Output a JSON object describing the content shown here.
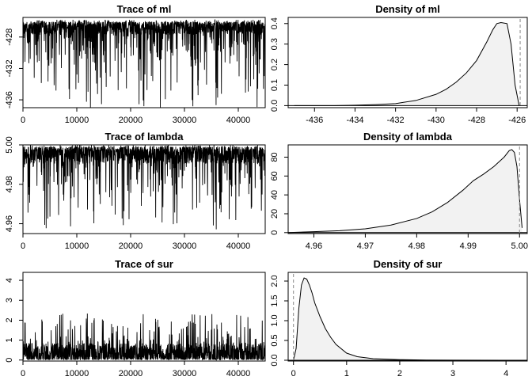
{
  "chart_data": [
    {
      "type": "line",
      "title": "Trace of ml",
      "xlim": [
        0,
        45000
      ],
      "ylim": [
        -437,
        -425.5
      ],
      "x_ticks": [
        0,
        10000,
        20000,
        30000,
        40000
      ],
      "y_ticks": [
        -436,
        -432,
        -428
      ],
      "trace": {
        "center": -427.0,
        "upper": -425.8,
        "lower": -437.0,
        "skew": "negative",
        "n_iter": 45000
      }
    },
    {
      "type": "area",
      "title": "Density of ml",
      "xlim": [
        -437.3,
        -425.5
      ],
      "ylim": [
        -0.01,
        0.43
      ],
      "x_ticks": [
        -436,
        -434,
        -432,
        -430,
        -428,
        -426
      ],
      "y_ticks": [
        0.0,
        0.1,
        0.2,
        0.3,
        0.4
      ],
      "x": [
        -437,
        -436,
        -435,
        -434,
        -433,
        -432,
        -431,
        -430,
        -429.5,
        -429,
        -428.5,
        -428,
        -427.5,
        -427.2,
        -427,
        -426.8,
        -426.5,
        -426.3,
        -426.1,
        -425.9
      ],
      "y": [
        0.0,
        0.0,
        0.0,
        0.002,
        0.005,
        0.01,
        0.025,
        0.055,
        0.08,
        0.115,
        0.16,
        0.22,
        0.31,
        0.37,
        0.4,
        0.405,
        0.4,
        0.3,
        0.1,
        0.0
      ],
      "marker_x": -425.85
    },
    {
      "type": "line",
      "title": "Trace of lambda",
      "xlim": [
        0,
        45000
      ],
      "ylim": [
        4.955,
        5.0
      ],
      "x_ticks": [
        0,
        10000,
        20000,
        30000,
        40000
      ],
      "y_ticks": [
        4.96,
        4.98,
        5.0
      ],
      "trace": {
        "center": 4.994,
        "upper": 5.0,
        "lower": 4.957,
        "skew": "negative",
        "n_iter": 45000
      }
    },
    {
      "type": "area",
      "title": "Density of lambda",
      "xlim": [
        4.955,
        5.0015
      ],
      "ylim": [
        -1,
        93
      ],
      "x_ticks": [
        4.96,
        4.97,
        4.98,
        4.99,
        5.0
      ],
      "tick_labels_x": [
        "4.96",
        "4.97",
        "4.98",
        "4.99",
        "5.00"
      ],
      "y_ticks": [
        0,
        20,
        40,
        60,
        80
      ],
      "x": [
        4.955,
        4.96,
        4.965,
        4.97,
        4.975,
        4.98,
        4.983,
        4.986,
        4.989,
        4.991,
        4.993,
        4.995,
        4.997,
        4.998,
        4.9985,
        4.999,
        4.9995,
        5.0,
        5.0005
      ],
      "y": [
        0,
        1,
        2,
        4,
        8,
        15,
        22,
        32,
        45,
        55,
        62,
        70,
        80,
        87,
        88,
        85,
        70,
        35,
        5
      ],
      "marker_x": 5.0
    },
    {
      "type": "line",
      "title": "Trace of sur",
      "xlim": [
        0,
        45000
      ],
      "ylim": [
        -0.05,
        4.4
      ],
      "x_ticks": [
        0,
        10000,
        20000,
        30000,
        40000
      ],
      "y_ticks": [
        0,
        1,
        2,
        3,
        4
      ],
      "trace": {
        "center": 0.4,
        "upper": 4.25,
        "lower": 0.02,
        "skew": "positive",
        "n_iter": 45000
      }
    },
    {
      "type": "area",
      "title": "Density of sur",
      "xlim": [
        -0.1,
        4.4
      ],
      "ylim": [
        -0.02,
        2.22
      ],
      "x_ticks": [
        0,
        1,
        2,
        3,
        4
      ],
      "y_ticks": [
        0.0,
        0.5,
        1.0,
        1.5,
        2.0
      ],
      "x": [
        0.0,
        0.05,
        0.1,
        0.15,
        0.2,
        0.25,
        0.3,
        0.35,
        0.4,
        0.5,
        0.6,
        0.7,
        0.8,
        1.0,
        1.2,
        1.5,
        2.0,
        2.5,
        3.0,
        4.3
      ],
      "y": [
        0.0,
        0.3,
        1.3,
        1.9,
        2.08,
        2.05,
        1.9,
        1.7,
        1.45,
        1.1,
        0.8,
        0.58,
        0.4,
        0.18,
        0.09,
        0.04,
        0.015,
        0.005,
        0.002,
        0.0
      ],
      "marker_x": 0.0
    }
  ]
}
